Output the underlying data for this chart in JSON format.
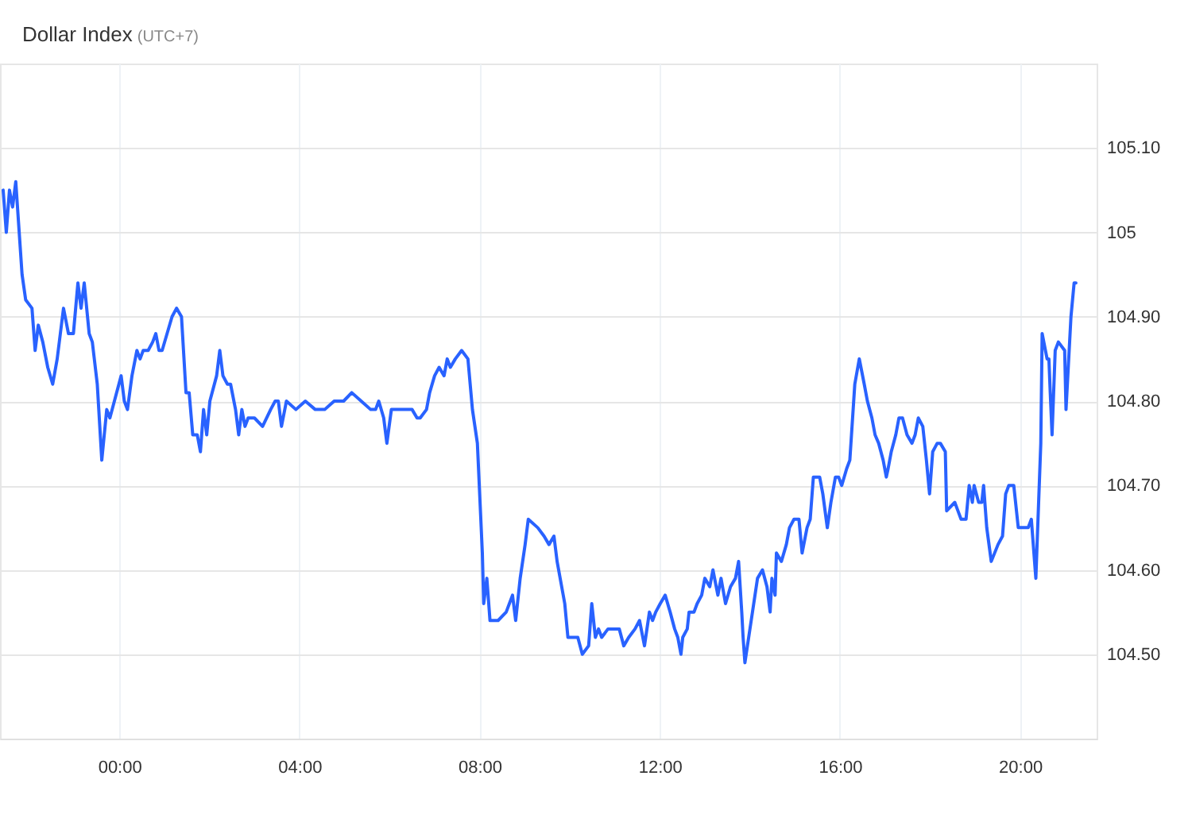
{
  "chart_data": {
    "type": "line",
    "title": "Dollar Index",
    "subtitle": "(UTC+7)",
    "xlim": [
      -2.65,
      21.7
    ],
    "ylim": [
      104.4,
      105.2
    ],
    "xticks": [
      {
        "value": 0,
        "label": "00:00"
      },
      {
        "value": 4,
        "label": "04:00"
      },
      {
        "value": 8,
        "label": "08:00"
      },
      {
        "value": 12,
        "label": "12:00"
      },
      {
        "value": 16,
        "label": "16:00"
      },
      {
        "value": 20,
        "label": "20:00"
      }
    ],
    "yticks": [
      {
        "value": 104.5,
        "label": "104.50"
      },
      {
        "value": 104.6,
        "label": "104.60"
      },
      {
        "value": 104.7,
        "label": "104.70"
      },
      {
        "value": 104.8,
        "label": "104.80"
      },
      {
        "value": 104.9,
        "label": "104.90"
      },
      105,
      {
        "value": 105.1,
        "label": "105.10"
      }
    ],
    "grid": true,
    "x": [
      -2.58,
      -2.51,
      -2.44,
      -2.37,
      -2.3,
      -2.16,
      -2.08,
      -1.94,
      -1.87,
      -1.8,
      -1.7,
      -1.59,
      -1.48,
      -1.38,
      -1.24,
      -1.13,
      -1.02,
      -0.92,
      -0.85,
      -0.78,
      -0.67,
      -0.6,
      -0.49,
      -0.39,
      -0.28,
      -0.21,
      -0.11,
      0.04,
      0.11,
      0.18,
      0.28,
      0.39,
      0.46,
      0.53,
      0.64,
      0.74,
      0.81,
      0.88,
      0.95,
      1.06,
      1.17,
      1.27,
      1.38,
      1.48,
      1.55,
      1.63,
      1.73,
      1.8,
      1.87,
      1.94,
      2.01,
      2.16,
      2.23,
      2.3,
      2.4,
      2.47,
      2.58,
      2.65,
      2.72,
      2.79,
      2.86,
      3.0,
      3.18,
      3.36,
      3.46,
      3.53,
      3.6,
      3.71,
      3.92,
      4.13,
      4.35,
      4.56,
      4.77,
      4.98,
      5.16,
      5.37,
      5.58,
      5.69,
      5.76,
      5.87,
      5.94,
      6.04,
      6.25,
      6.5,
      6.61,
      6.68,
      6.82,
      6.89,
      7.0,
      7.1,
      7.21,
      7.28,
      7.35,
      7.46,
      7.6,
      7.74,
      7.84,
      7.95,
      8.06,
      8.09,
      8.16,
      8.23,
      8.41,
      8.59,
      8.73,
      8.8,
      8.9,
      9.01,
      9.08,
      9.29,
      9.43,
      9.54,
      9.65,
      9.72,
      9.89,
      9.96,
      10.18,
      10.28,
      10.42,
      10.49,
      10.57,
      10.64,
      10.71,
      10.85,
      10.95,
      11.1,
      11.2,
      11.31,
      11.45,
      11.55,
      11.66,
      11.77,
      11.84,
      11.91,
      12.01,
      12.12,
      12.23,
      12.33,
      12.4,
      12.47,
      12.51,
      12.61,
      12.65,
      12.76,
      12.83,
      12.93,
      13.0,
      13.11,
      13.18,
      13.29,
      13.36,
      13.46,
      13.57,
      13.68,
      13.75,
      13.82,
      13.85,
      13.89,
      14.03,
      14.17,
      14.28,
      14.38,
      14.45,
      14.49,
      14.56,
      14.59,
      14.7,
      14.81,
      14.88,
      14.98,
      15.09,
      15.16,
      15.27,
      15.34,
      15.41,
      15.55,
      15.62,
      15.72,
      15.8,
      15.9,
      15.97,
      16.04,
      16.15,
      16.22,
      16.33,
      16.43,
      16.54,
      16.61,
      16.71,
      16.78,
      16.86,
      16.96,
      17.03,
      17.07,
      17.14,
      17.24,
      17.31,
      17.39,
      17.49,
      17.6,
      17.67,
      17.74,
      17.84,
      17.92,
      17.99,
      18.06,
      18.16,
      18.23,
      18.34,
      18.37,
      18.55,
      18.62,
      18.69,
      18.8,
      18.87,
      18.94,
      18.98,
      19.08,
      19.15,
      19.19,
      19.26,
      19.36,
      19.51,
      19.61,
      19.68,
      19.75,
      19.86,
      19.96,
      20.07,
      20.18,
      20.25,
      20.35,
      20.46,
      20.49,
      20.6,
      20.64,
      20.67,
      20.71,
      20.78,
      20.85,
      20.99,
      21.02,
      21.1,
      21.13,
      21.2,
      21.24
    ],
    "series": [
      {
        "color": "#2962ff",
        "values": [
          105.05,
          105.0,
          105.05,
          105.03,
          105.06,
          104.95,
          104.92,
          104.91,
          104.86,
          104.89,
          104.87,
          104.84,
          104.82,
          104.85,
          104.91,
          104.88,
          104.88,
          104.94,
          104.91,
          104.94,
          104.88,
          104.87,
          104.82,
          104.73,
          104.79,
          104.78,
          104.8,
          104.83,
          104.8,
          104.79,
          104.83,
          104.86,
          104.85,
          104.86,
          104.86,
          104.87,
          104.88,
          104.86,
          104.86,
          104.88,
          104.9,
          104.91,
          104.9,
          104.81,
          104.81,
          104.76,
          104.76,
          104.74,
          104.79,
          104.76,
          104.8,
          104.83,
          104.86,
          104.83,
          104.82,
          104.82,
          104.79,
          104.76,
          104.79,
          104.77,
          104.78,
          104.78,
          104.77,
          104.79,
          104.8,
          104.8,
          104.77,
          104.8,
          104.79,
          104.8,
          104.79,
          104.79,
          104.8,
          104.8,
          104.81,
          104.8,
          104.79,
          104.79,
          104.8,
          104.78,
          104.75,
          104.79,
          104.79,
          104.79,
          104.78,
          104.78,
          104.79,
          104.81,
          104.83,
          104.84,
          104.83,
          104.85,
          104.84,
          104.85,
          104.86,
          104.85,
          104.79,
          104.75,
          104.62,
          104.56,
          104.59,
          104.54,
          104.54,
          104.55,
          104.57,
          104.54,
          104.59,
          104.63,
          104.66,
          104.65,
          104.64,
          104.63,
          104.64,
          104.61,
          104.56,
          104.52,
          104.52,
          104.5,
          104.51,
          104.56,
          104.52,
          104.53,
          104.52,
          104.53,
          104.53,
          104.53,
          104.51,
          104.52,
          104.53,
          104.54,
          104.51,
          104.55,
          104.54,
          104.55,
          104.56,
          104.57,
          104.55,
          104.53,
          104.52,
          104.5,
          104.52,
          104.53,
          104.55,
          104.55,
          104.56,
          104.57,
          104.59,
          104.58,
          104.6,
          104.57,
          104.59,
          104.56,
          104.58,
          104.59,
          104.61,
          104.55,
          104.52,
          104.49,
          104.54,
          104.59,
          104.6,
          104.58,
          104.55,
          104.59,
          104.57,
          104.62,
          104.61,
          104.63,
          104.65,
          104.66,
          104.66,
          104.62,
          104.65,
          104.66,
          104.71,
          104.71,
          104.69,
          104.65,
          104.68,
          104.71,
          104.71,
          104.7,
          104.72,
          104.73,
          104.82,
          104.85,
          104.82,
          104.8,
          104.78,
          104.76,
          104.75,
          104.73,
          104.71,
          104.72,
          104.74,
          104.76,
          104.78,
          104.78,
          104.76,
          104.75,
          104.76,
          104.78,
          104.77,
          104.73,
          104.69,
          104.74,
          104.75,
          104.75,
          104.74,
          104.67,
          104.68,
          104.67,
          104.66,
          104.66,
          104.7,
          104.68,
          104.7,
          104.68,
          104.68,
          104.7,
          104.65,
          104.61,
          104.63,
          104.64,
          104.69,
          104.7,
          104.7,
          104.65,
          104.65,
          104.65,
          104.66,
          104.59,
          104.75,
          104.88,
          104.85,
          104.85,
          104.81,
          104.76,
          104.86,
          104.87,
          104.86,
          104.79,
          104.87,
          104.9,
          104.94,
          104.94
        ]
      }
    ]
  }
}
